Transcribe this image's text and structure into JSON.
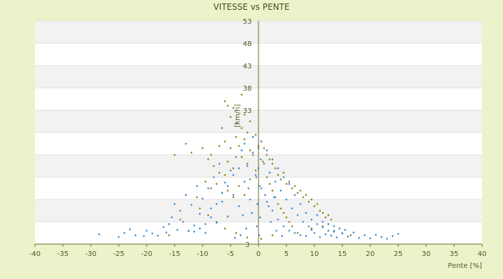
{
  "chart_data": {
    "type": "scatter",
    "title": "VITESSE vs PENTE",
    "xlabel": "Pente [%]",
    "ylabel": "[km/h]",
    "xlim": [
      -40,
      40
    ],
    "ylim": [
      3,
      53
    ],
    "x_ticks": [
      -40,
      -35,
      -30,
      -25,
      -20,
      -15,
      -10,
      -5,
      0,
      5,
      10,
      15,
      20,
      25,
      30,
      35,
      40
    ],
    "y_ticks": [
      3,
      8,
      13,
      18,
      23,
      28,
      33,
      38,
      43,
      48,
      53
    ],
    "x_tick_labels": [
      "-40",
      "-35",
      "-30",
      "-25",
      "-20",
      "-15",
      "-10",
      "-5",
      "0",
      "5",
      "10",
      "15",
      "20",
      "25",
      "30",
      "35",
      "40"
    ],
    "y_tick_labels": [
      "3",
      "",
      "",
      "",
      "",
      "",
      "33",
      "38",
      "43",
      "48",
      "53"
    ],
    "grid": true,
    "colors": {
      "background": "#ecf2c9",
      "band_light": "#ffffff",
      "band_dark": "#f2f2f2",
      "axis": "#6b6b2a",
      "series_blue": "#3b8fd9",
      "series_olive": "#8c8a1e"
    },
    "series": [
      {
        "color": "#8c8a1e",
        "points": [
          [
            -6.0,
            35.0
          ],
          [
            -5.5,
            34.0
          ],
          [
            -4.5,
            33.5
          ],
          [
            -3.0,
            36.5
          ],
          [
            -2.5,
            32.0
          ],
          [
            -5.0,
            31.5
          ],
          [
            -4.0,
            30.0
          ],
          [
            -6.5,
            29.0
          ],
          [
            -1.5,
            30.5
          ],
          [
            -2.0,
            28.0
          ],
          [
            -13.0,
            25.5
          ],
          [
            -15.0,
            23.0
          ],
          [
            -12.0,
            23.5
          ],
          [
            -10.0,
            24.5
          ],
          [
            -8.5,
            23.0
          ],
          [
            -7.0,
            25.0
          ],
          [
            -9.0,
            22.0
          ],
          [
            -6.0,
            26.0
          ],
          [
            -5.0,
            24.5
          ],
          [
            -4.0,
            27.0
          ],
          [
            -3.5,
            25.0
          ],
          [
            -2.5,
            26.5
          ],
          [
            -1.5,
            24.0
          ],
          [
            -0.5,
            27.5
          ],
          [
            0.5,
            26.0
          ],
          [
            1.0,
            24.5
          ],
          [
            1.5,
            23.0
          ],
          [
            2.0,
            22.0
          ],
          [
            2.5,
            21.0
          ],
          [
            3.0,
            20.0
          ],
          [
            -8.0,
            20.5
          ],
          [
            -7.0,
            19.0
          ],
          [
            -6.0,
            18.5
          ],
          [
            -5.5,
            21.5
          ],
          [
            -4.5,
            20.0
          ],
          [
            -3.0,
            22.5
          ],
          [
            -2.0,
            21.0
          ],
          [
            -1.0,
            23.0
          ],
          [
            0.0,
            25.0
          ],
          [
            0.8,
            21.5
          ],
          [
            3.5,
            18.5
          ],
          [
            4.0,
            17.5
          ],
          [
            4.5,
            19.0
          ],
          [
            5.0,
            16.5
          ],
          [
            5.5,
            17.0
          ],
          [
            6.0,
            15.5
          ],
          [
            6.5,
            16.0
          ],
          [
            7.0,
            14.5
          ],
          [
            7.5,
            15.0
          ],
          [
            8.0,
            13.5
          ],
          [
            8.5,
            14.0
          ],
          [
            9.0,
            12.5
          ],
          [
            9.5,
            13.0
          ],
          [
            10.0,
            11.5
          ],
          [
            10.5,
            12.0
          ],
          [
            11.0,
            10.5
          ],
          [
            11.5,
            10.0
          ],
          [
            12.0,
            9.0
          ],
          [
            12.5,
            9.5
          ],
          [
            13.0,
            8.5
          ],
          [
            -9.5,
            17.0
          ],
          [
            -8.5,
            15.5
          ],
          [
            -7.5,
            16.5
          ],
          [
            -6.5,
            14.5
          ],
          [
            -5.5,
            15.0
          ],
          [
            -4.5,
            13.5
          ],
          [
            -3.5,
            16.0
          ],
          [
            -2.5,
            14.0
          ],
          [
            -1.5,
            17.5
          ],
          [
            -0.5,
            19.5
          ],
          [
            1.5,
            18.0
          ],
          [
            2.0,
            16.5
          ],
          [
            2.5,
            15.0
          ],
          [
            3.0,
            13.5
          ],
          [
            3.5,
            12.0
          ],
          [
            4.0,
            11.0
          ],
          [
            4.5,
            10.0
          ],
          [
            5.0,
            9.0
          ],
          [
            5.5,
            8.0
          ],
          [
            6.0,
            7.0
          ],
          [
            -11.0,
            13.5
          ],
          [
            -10.5,
            11.0
          ],
          [
            -9.0,
            9.5
          ],
          [
            -7.5,
            8.0
          ],
          [
            -6.0,
            6.5
          ],
          [
            -4.0,
            5.5
          ],
          [
            -2.0,
            4.5
          ],
          [
            0.5,
            4.2
          ],
          [
            2.5,
            5.0
          ],
          [
            7.0,
            5.5
          ],
          [
            9.5,
            6.5
          ],
          [
            11.5,
            7.0
          ],
          [
            13.5,
            6.0
          ],
          [
            15.0,
            5.5
          ],
          [
            16.5,
            5.0
          ],
          [
            -14.0,
            8.5
          ],
          [
            -12.5,
            6.0
          ],
          [
            -16.0,
            5.0
          ],
          [
            -3.0,
            29.0
          ],
          [
            -1.0,
            27.0
          ]
        ]
      },
      {
        "color": "#3b8fd9",
        "points": [
          [
            -28.5,
            5.2
          ],
          [
            -25.0,
            4.6
          ],
          [
            -24.0,
            5.5
          ],
          [
            -23.0,
            6.3
          ],
          [
            -22.0,
            5.0
          ],
          [
            -20.5,
            4.8
          ],
          [
            -20.0,
            6.0
          ],
          [
            -19.0,
            5.4
          ],
          [
            -18.0,
            4.9
          ],
          [
            -17.0,
            6.8
          ],
          [
            -16.5,
            5.6
          ],
          [
            -16.0,
            7.5
          ],
          [
            -15.5,
            9.0
          ],
          [
            -15.0,
            12.0
          ],
          [
            -14.5,
            6.2
          ],
          [
            -14.0,
            10.5
          ],
          [
            -13.5,
            8.0
          ],
          [
            -13.0,
            14.0
          ],
          [
            -12.5,
            5.9
          ],
          [
            -12.0,
            11.8
          ],
          [
            -11.5,
            7.2
          ],
          [
            -11.0,
            16.0
          ],
          [
            -10.5,
            9.8
          ],
          [
            -10.0,
            13.2
          ],
          [
            -9.5,
            5.5
          ],
          [
            -9.0,
            15.5
          ],
          [
            -8.5,
            11.0
          ],
          [
            -8.0,
            18.0
          ],
          [
            -7.5,
            7.8
          ],
          [
            -7.0,
            21.0
          ],
          [
            -6.5,
            12.5
          ],
          [
            -6.0,
            16.8
          ],
          [
            -5.5,
            9.2
          ],
          [
            -5.0,
            19.5
          ],
          [
            -4.5,
            14.0
          ],
          [
            -4.0,
            22.5
          ],
          [
            -3.5,
            11.5
          ],
          [
            -3.0,
            24.0
          ],
          [
            -2.5,
            17.0
          ],
          [
            -2.0,
            20.5
          ],
          [
            -1.5,
            13.0
          ],
          [
            -1.0,
            23.5
          ],
          [
            -0.5,
            18.5
          ],
          [
            0.0,
            24.5
          ],
          [
            0.5,
            15.5
          ],
          [
            1.0,
            21.0
          ],
          [
            1.5,
            12.5
          ],
          [
            2.0,
            19.0
          ],
          [
            2.5,
            10.5
          ],
          [
            3.0,
            17.0
          ],
          [
            3.5,
            8.5
          ],
          [
            4.0,
            15.0
          ],
          [
            4.5,
            7.0
          ],
          [
            5.0,
            13.0
          ],
          [
            5.5,
            6.0
          ],
          [
            6.0,
            11.0
          ],
          [
            6.5,
            5.5
          ],
          [
            7.0,
            9.5
          ],
          [
            7.5,
            5.0
          ],
          [
            8.0,
            8.0
          ],
          [
            8.5,
            4.8
          ],
          [
            9.0,
            7.0
          ],
          [
            9.5,
            6.2
          ],
          [
            10.0,
            5.5
          ],
          [
            10.5,
            7.5
          ],
          [
            11.0,
            4.6
          ],
          [
            11.5,
            6.8
          ],
          [
            12.0,
            5.2
          ],
          [
            12.5,
            6.0
          ],
          [
            13.0,
            4.9
          ],
          [
            13.5,
            5.8
          ],
          [
            14.0,
            4.5
          ],
          [
            15.0,
            5.4
          ],
          [
            16.0,
            4.7
          ],
          [
            17.0,
            5.6
          ],
          [
            18.0,
            4.4
          ],
          [
            19.0,
            5.0
          ],
          [
            20.0,
            4.3
          ],
          [
            21.0,
            5.1
          ],
          [
            22.0,
            4.6
          ],
          [
            23.0,
            4.2
          ],
          [
            24.0,
            4.8
          ],
          [
            25.0,
            5.3
          ],
          [
            -1.0,
            27.0
          ],
          [
            0.5,
            26.0
          ],
          [
            1.5,
            24.0
          ],
          [
            -2.5,
            25.5
          ],
          [
            -3.5,
            20.0
          ],
          [
            -4.5,
            18.5
          ],
          [
            -5.5,
            16.0
          ],
          [
            -6.5,
            14.5
          ],
          [
            -7.5,
            12.0
          ],
          [
            -8.5,
            9.0
          ],
          [
            -9.5,
            7.5
          ],
          [
            -10.5,
            6.5
          ],
          [
            -11.5,
            5.8
          ],
          [
            2.5,
            22.0
          ],
          [
            3.5,
            20.0
          ],
          [
            4.5,
            18.0
          ],
          [
            5.5,
            16.5
          ],
          [
            6.5,
            14.0
          ],
          [
            7.5,
            12.0
          ],
          [
            8.5,
            10.0
          ],
          [
            9.5,
            8.5
          ],
          [
            10.5,
            9.5
          ],
          [
            11.5,
            8.0
          ],
          [
            12.5,
            7.5
          ],
          [
            13.5,
            7.0
          ],
          [
            14.5,
            6.5
          ],
          [
            15.5,
            6.2
          ],
          [
            0.0,
            20.0
          ],
          [
            0.2,
            16.0
          ],
          [
            -0.2,
            12.0
          ],
          [
            0.3,
            9.0
          ],
          [
            -0.3,
            7.0
          ],
          [
            0.1,
            5.0
          ],
          [
            0.4,
            22.0
          ],
          [
            -0.4,
            18.0
          ],
          [
            1.2,
            14.0
          ],
          [
            -1.2,
            10.0
          ],
          [
            2.2,
            8.0
          ],
          [
            -2.2,
            6.5
          ],
          [
            3.2,
            6.0
          ],
          [
            -3.2,
            5.0
          ],
          [
            4.2,
            4.8
          ],
          [
            -4.2,
            4.4
          ],
          [
            1.8,
            11.5
          ],
          [
            -1.8,
            15.5
          ],
          [
            2.8,
            13.5
          ],
          [
            -2.8,
            9.5
          ]
        ]
      }
    ]
  }
}
